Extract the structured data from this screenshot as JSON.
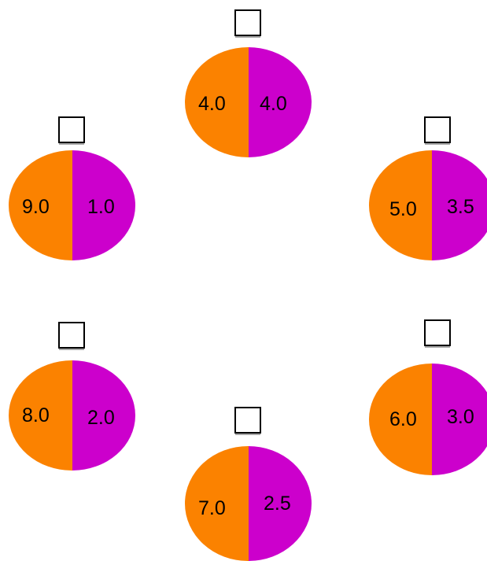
{
  "colors": {
    "left": "#fb8200",
    "right": "#cc00cc"
  },
  "nodes": [
    {
      "id": "top",
      "left_value": "4.0",
      "right_value": "4.0"
    },
    {
      "id": "upper-left",
      "left_value": "9.0",
      "right_value": "1.0"
    },
    {
      "id": "upper-right",
      "left_value": "5.0",
      "right_value": "3.5"
    },
    {
      "id": "lower-left",
      "left_value": "8.0",
      "right_value": "2.0"
    },
    {
      "id": "lower-right",
      "left_value": "6.0",
      "right_value": "3.0"
    },
    {
      "id": "bottom",
      "left_value": "7.0",
      "right_value": "2.5"
    }
  ]
}
